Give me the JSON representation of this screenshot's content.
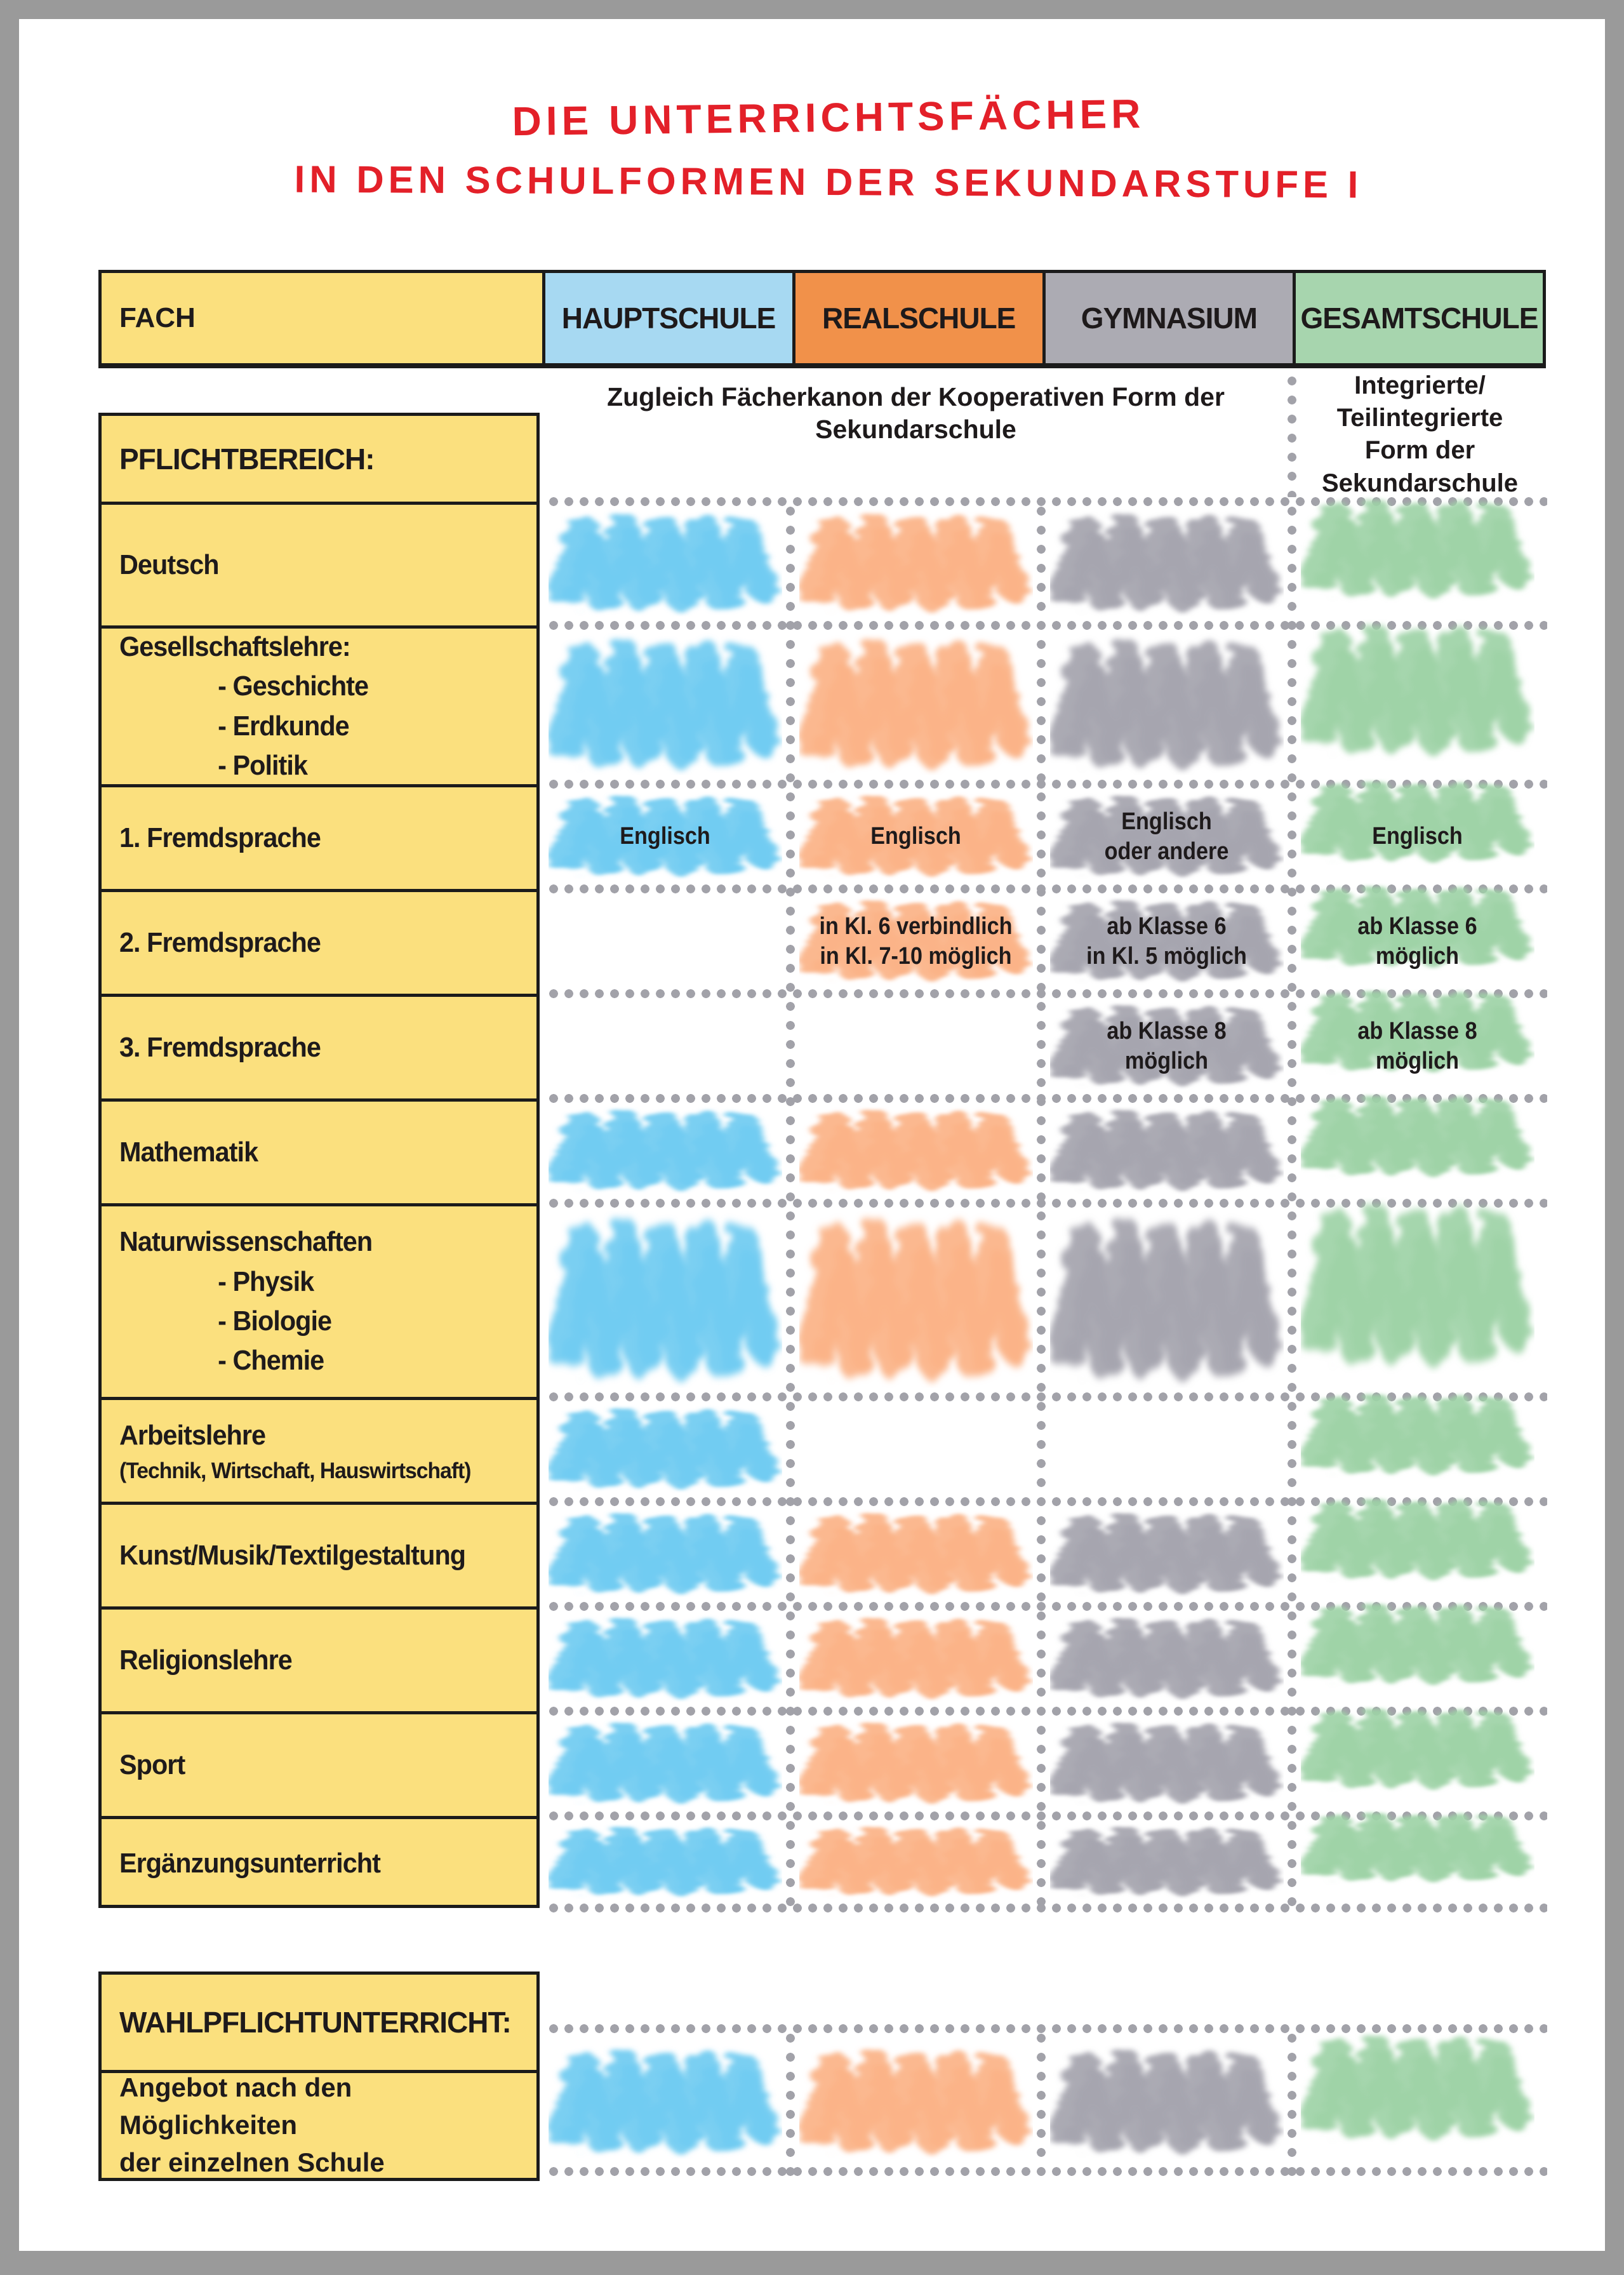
{
  "title": {
    "line1": "DIE UNTERRICHTSFÄCHER",
    "line2": "IN DEN SCHULFORMEN DER SEKUNDARSTUFE I"
  },
  "header": {
    "fach": "FACH",
    "schools": [
      {
        "id": "hauptschule",
        "label": "HAUPTSCHULE",
        "color": "#a7d9f2",
        "mark": "#6fcbf1"
      },
      {
        "id": "realschule",
        "label": "REALSCHULE",
        "color": "#f1914a",
        "mark": "#fbb286"
      },
      {
        "id": "gymnasium",
        "label": "GYMNASIUM",
        "color": "#acabb3",
        "mark": "#a4a3ad"
      },
      {
        "id": "gesamtschule",
        "label": "GESAMTSCHULE",
        "color": "#a7d5ae",
        "mark": "#9dd2a6"
      }
    ]
  },
  "notes": {
    "koop": "Zugleich Fächerkanon der Kooperativen Form der\nSekundarschule",
    "integriert": "Integrierte/\nTeilintegrierte\nForm der\nSekundarschule"
  },
  "pflicht": {
    "heading": "PFLICHTBEREICH:",
    "rows": [
      {
        "id": "deutsch",
        "label_lines": [
          {
            "text": "Deutsch",
            "style": "main"
          }
        ],
        "cells": [
          {
            "mark": true
          },
          {
            "mark": true
          },
          {
            "mark": true
          },
          {
            "mark": true
          }
        ]
      },
      {
        "id": "gesellschaftslehre",
        "label_lines": [
          {
            "text": "Gesellschaftslehre:",
            "style": "main"
          },
          {
            "text": "- Geschichte",
            "style": "sub"
          },
          {
            "text": "- Erdkunde",
            "style": "sub"
          },
          {
            "text": "- Politik",
            "style": "sub"
          }
        ],
        "cells": [
          {
            "mark": true
          },
          {
            "mark": true
          },
          {
            "mark": true
          },
          {
            "mark": true
          }
        ]
      },
      {
        "id": "fremdsprache-1",
        "label_lines": [
          {
            "text": "1. Fremdsprache",
            "style": "main"
          }
        ],
        "cells": [
          {
            "mark": true,
            "text": "Englisch"
          },
          {
            "mark": true,
            "text": "Englisch"
          },
          {
            "mark": true,
            "text": "Englisch\noder andere"
          },
          {
            "mark": true,
            "text": "Englisch"
          }
        ]
      },
      {
        "id": "fremdsprache-2",
        "label_lines": [
          {
            "text": "2. Fremdsprache",
            "style": "main"
          }
        ],
        "cells": [
          {
            "mark": false
          },
          {
            "mark": true,
            "text": "in Kl. 6 verbindlich\nin Kl. 7-10 möglich"
          },
          {
            "mark": true,
            "text": "ab Klasse 6\nin Kl. 5 möglich"
          },
          {
            "mark": true,
            "text": "ab Klasse 6\nmöglich"
          }
        ]
      },
      {
        "id": "fremdsprache-3",
        "label_lines": [
          {
            "text": "3. Fremdsprache",
            "style": "main"
          }
        ],
        "cells": [
          {
            "mark": false
          },
          {
            "mark": false
          },
          {
            "mark": true,
            "text": "ab Klasse 8\nmöglich"
          },
          {
            "mark": true,
            "text": "ab Klasse 8\nmöglich"
          }
        ]
      },
      {
        "id": "mathematik",
        "label_lines": [
          {
            "text": "Mathematik",
            "style": "main"
          }
        ],
        "cells": [
          {
            "mark": true
          },
          {
            "mark": true
          },
          {
            "mark": true
          },
          {
            "mark": true
          }
        ]
      },
      {
        "id": "naturwissenschaften",
        "label_lines": [
          {
            "text": "Naturwissenschaften",
            "style": "main"
          },
          {
            "text": "- Physik",
            "style": "sub"
          },
          {
            "text": "- Biologie",
            "style": "sub"
          },
          {
            "text": "- Chemie",
            "style": "sub"
          }
        ],
        "cells": [
          {
            "mark": true
          },
          {
            "mark": true
          },
          {
            "mark": true
          },
          {
            "mark": true
          }
        ]
      },
      {
        "id": "arbeitslehre",
        "label_lines": [
          {
            "text": "Arbeitslehre",
            "style": "main"
          },
          {
            "text": "(Technik, Wirtschaft, Hauswirtschaft)",
            "style": "paren"
          }
        ],
        "cells": [
          {
            "mark": true
          },
          {
            "mark": false
          },
          {
            "mark": false
          },
          {
            "mark": true
          }
        ]
      },
      {
        "id": "kunst-musik-textil",
        "label_lines": [
          {
            "text": "Kunst/Musik/Textilgestaltung",
            "style": "main"
          }
        ],
        "cells": [
          {
            "mark": true
          },
          {
            "mark": true
          },
          {
            "mark": true
          },
          {
            "mark": true
          }
        ]
      },
      {
        "id": "religionslehre",
        "label_lines": [
          {
            "text": "Religionslehre",
            "style": "main"
          }
        ],
        "cells": [
          {
            "mark": true
          },
          {
            "mark": true
          },
          {
            "mark": true
          },
          {
            "mark": true
          }
        ]
      },
      {
        "id": "sport",
        "label_lines": [
          {
            "text": "Sport",
            "style": "main"
          }
        ],
        "cells": [
          {
            "mark": true
          },
          {
            "mark": true
          },
          {
            "mark": true
          },
          {
            "mark": true
          }
        ]
      },
      {
        "id": "ergaenzungsunterricht",
        "label_lines": [
          {
            "text": "Ergänzungsunterricht",
            "style": "main"
          }
        ],
        "cells": [
          {
            "mark": true
          },
          {
            "mark": true
          },
          {
            "mark": true
          },
          {
            "mark": true
          }
        ]
      }
    ]
  },
  "wahlpflicht": {
    "heading": "WAHLPFLICHTUNTERRICHT:",
    "label": "Angebot nach den Möglichkeiten\nder einzelnen Schule",
    "cells": [
      {
        "mark": true
      },
      {
        "mark": true
      },
      {
        "mark": true
      },
      {
        "mark": true
      }
    ]
  },
  "colors": {
    "page_border": "#9a9a9a",
    "paper": "#ffffff",
    "yellow": "#fbe07e",
    "line_black": "#1b1b1b",
    "title_red": "#e32029",
    "dots": "#a2a2a9",
    "text": "#1e1a1b"
  }
}
